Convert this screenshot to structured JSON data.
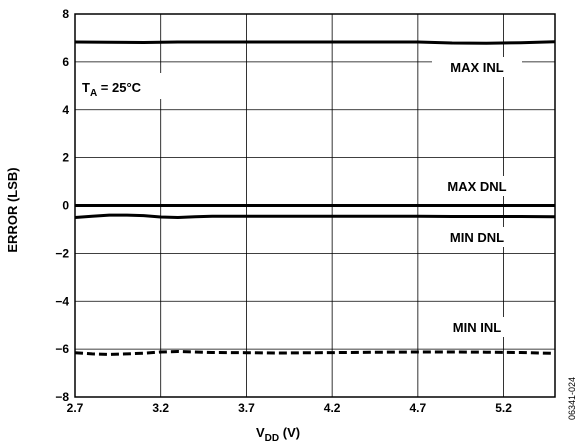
{
  "chart_data": {
    "type": "line",
    "xlabel_main": "V",
    "xlabel_sub": "DD",
    "xlabel_unit": " (V)",
    "ylabel": "ERROR (LSB)",
    "xlim": [
      2.7,
      5.5
    ],
    "ylim": [
      -8,
      8
    ],
    "x_ticks": [
      "2.7",
      "3.2",
      "3.7",
      "4.2",
      "4.7",
      "5.2"
    ],
    "x_tick_values": [
      2.7,
      3.2,
      3.7,
      4.2,
      4.7,
      5.2
    ],
    "y_ticks": [
      "8",
      "6",
      "4",
      "2",
      "0",
      "−2",
      "−4",
      "−6",
      "−8"
    ],
    "y_tick_values": [
      8,
      6,
      4,
      2,
      0,
      -2,
      -4,
      -6,
      -8
    ],
    "x_grid_values": [
      2.7,
      3.2,
      3.7,
      4.2,
      4.7,
      5.2
    ],
    "y_grid_values": [
      8,
      6,
      4,
      2,
      0,
      -2,
      -4,
      -6,
      -8
    ],
    "grid": true,
    "series": [
      {
        "name": "MAX INL",
        "style": "solid",
        "x": [
          2.7,
          2.9,
          3.1,
          3.3,
          3.5,
          3.7,
          3.9,
          4.1,
          4.3,
          4.5,
          4.7,
          4.9,
          5.1,
          5.3,
          5.5
        ],
        "y": [
          6.83,
          6.82,
          6.81,
          6.83,
          6.83,
          6.83,
          6.83,
          6.83,
          6.83,
          6.83,
          6.83,
          6.79,
          6.78,
          6.8,
          6.84
        ]
      },
      {
        "name": "MAX DNL",
        "style": "solid",
        "x": [
          2.7,
          3.0,
          3.5,
          4.0,
          4.5,
          5.0,
          5.5
        ],
        "y": [
          0.0,
          0.0,
          0.0,
          0.0,
          0.0,
          0.0,
          0.0
        ]
      },
      {
        "name": "MIN DNL",
        "style": "solid",
        "x": [
          2.7,
          2.8,
          2.9,
          3.0,
          3.1,
          3.2,
          3.3,
          3.4,
          3.5,
          3.7,
          3.9,
          4.1,
          4.3,
          4.5,
          4.7,
          4.9,
          5.1,
          5.3,
          5.5
        ],
        "y": [
          -0.5,
          -0.45,
          -0.4,
          -0.4,
          -0.42,
          -0.48,
          -0.5,
          -0.47,
          -0.45,
          -0.45,
          -0.45,
          -0.45,
          -0.45,
          -0.45,
          -0.45,
          -0.46,
          -0.46,
          -0.46,
          -0.47
        ]
      },
      {
        "name": "MIN INL",
        "style": "dashed",
        "x": [
          2.7,
          2.8,
          2.9,
          3.0,
          3.1,
          3.2,
          3.3,
          3.4,
          3.5,
          3.7,
          3.9,
          4.1,
          4.3,
          4.5,
          4.7,
          4.9,
          5.1,
          5.3,
          5.5
        ],
        "y": [
          -6.15,
          -6.2,
          -6.22,
          -6.2,
          -6.17,
          -6.12,
          -6.1,
          -6.12,
          -6.14,
          -6.15,
          -6.16,
          -6.15,
          -6.14,
          -6.13,
          -6.12,
          -6.12,
          -6.13,
          -6.14,
          -6.18
        ]
      }
    ],
    "annotations": {
      "ta_main": "T",
      "ta_sub": "A",
      "ta_rest": " = 25°C"
    },
    "figure_code": "06341-024"
  }
}
